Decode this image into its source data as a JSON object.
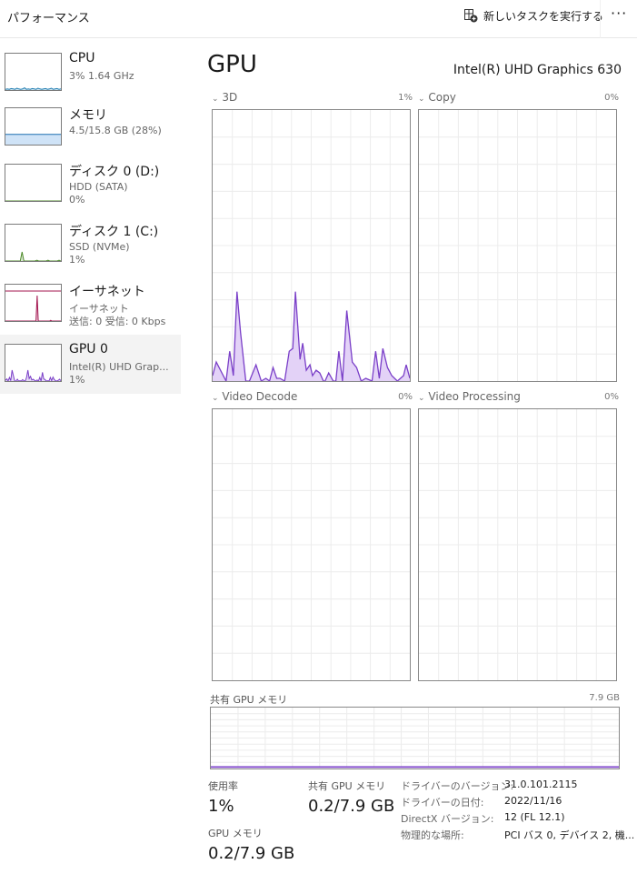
{
  "header": {
    "title": "パフォーマンス",
    "new_task_label": "新しいタスクを実行する",
    "new_task_icon": "new-task-icon",
    "more_icon": "ellipsis-icon",
    "more_label": "···"
  },
  "sidebar": {
    "items": [
      {
        "name": "CPU",
        "sub1": "3%  1.64 GHz",
        "sub2": "",
        "color": "#1c7bb0",
        "values": [
          2,
          3,
          2,
          4,
          3,
          2,
          5,
          3,
          2,
          3,
          6,
          2,
          3,
          2,
          4,
          3,
          2,
          5,
          3,
          2,
          3,
          4,
          2,
          3,
          5,
          2,
          3,
          4,
          2,
          3
        ]
      },
      {
        "name": "メモリ",
        "sub1": "4.5/15.8 GB (28%)",
        "sub2": "",
        "color": "#1c6fb0",
        "fill": 28
      },
      {
        "name": "ディスク 0 (D:)",
        "sub1": "HDD (SATA)",
        "sub2": "0%",
        "color": "#4d8a2a",
        "values": [
          0,
          0,
          0,
          0,
          0,
          0,
          0,
          0,
          0,
          0
        ]
      },
      {
        "name": "ディスク 1 (C:)",
        "sub1": "SSD (NVMe)",
        "sub2": "1%",
        "color": "#4d8a2a",
        "values": [
          0,
          0,
          0,
          0,
          0,
          0,
          0,
          0,
          0,
          25,
          0,
          0,
          0,
          0,
          0,
          0,
          0,
          2,
          0,
          0,
          0,
          0,
          0,
          2,
          0,
          0,
          0,
          0,
          0,
          2,
          0
        ]
      },
      {
        "name": "イーサネット",
        "sub1": "イーサネット",
        "sub2": "送信: 0 受信: 0 Kbps",
        "color": "#a3154f",
        "values": [
          0,
          0,
          0,
          0,
          0,
          0,
          0,
          0,
          0,
          0,
          0,
          0,
          0,
          0,
          0,
          0,
          0,
          0,
          0,
          0,
          0,
          0,
          0,
          0,
          0,
          0,
          0,
          0,
          70,
          0,
          0,
          0,
          0,
          0,
          0,
          0,
          0,
          0,
          0,
          0,
          2,
          0,
          0,
          0,
          0,
          0,
          0,
          0,
          0,
          0
        ]
      },
      {
        "name": "GPU 0",
        "sub1": "Intel(R) UHD Grap...",
        "sub2": "1%",
        "color": "#7a3fc8",
        "values": [
          2,
          6,
          0,
          10,
          1,
          30,
          15,
          0,
          0,
          5,
          0,
          1,
          0,
          4,
          1,
          0,
          10,
          30,
          7,
          13,
          3,
          5,
          2,
          0,
          3,
          0,
          10,
          0,
          24,
          6,
          4,
          0,
          1,
          0,
          10,
          1,
          11,
          4,
          1,
          0,
          2,
          5,
          1
        ]
      }
    ]
  },
  "main": {
    "title": "GPU",
    "adapter": "Intel(R) UHD Graphics 630",
    "engines": [
      {
        "label": "3D",
        "pct": "1%"
      },
      {
        "label": "Copy",
        "pct": "0%"
      },
      {
        "label": "Video Decode",
        "pct": "0%"
      },
      {
        "label": "Video Processing",
        "pct": "0%"
      }
    ],
    "shared_mem": {
      "label": "共有 GPU メモリ",
      "max": "7.9 GB",
      "value_gb": 0.2
    },
    "stats": {
      "usage_label": "使用率",
      "usage_value": "1%",
      "gpu_mem_label": "GPU メモリ",
      "gpu_mem_value": "0.2/7.9 GB",
      "shared_label": "共有 GPU メモリ",
      "shared_value": "0.2/7.9 GB"
    },
    "details": [
      {
        "k": "ドライバーのバージョン:",
        "v": "31.0.101.2115"
      },
      {
        "k": "ドライバーの日付:",
        "v": "2022/11/16"
      },
      {
        "k": "DirectX バージョン:",
        "v": "12 (FL 12.1)"
      },
      {
        "k": "物理的な場所:",
        "v": "PCI バス 0, デバイス 2, 機..."
      }
    ]
  },
  "colors": {
    "gpu_line": "#7a3fc8",
    "gpu_fill": "#e3d2f7",
    "grid": "#ececec",
    "border": "#888888",
    "selected_bg": "#f3f3f3"
  },
  "chart_data": {
    "type": "area",
    "title": "3D",
    "xlabel": "",
    "ylabel": "",
    "xlim": [
      0,
      60
    ],
    "ylim": [
      0,
      100
    ],
    "grid": true,
    "x": [
      0,
      1.1,
      4.1,
      5.2,
      6.3,
      7.4,
      8.5,
      10.1,
      11.2,
      13.2,
      14.8,
      16.2,
      17.3,
      18.4,
      19.5,
      20.5,
      21.9,
      23.3,
      24.4,
      25.2,
      26.6,
      27.4,
      28.5,
      29.6,
      30.4,
      31.5,
      32.6,
      33.7,
      34.2,
      35.3,
      36.7,
      37.5,
      38.4,
      39.5,
      40.8,
      42.5,
      43.8,
      45.2,
      46.6,
      48.5,
      49.6,
      50.7,
      51.8,
      53.2,
      54.5,
      56.2,
      58.1,
      58.9,
      60
    ],
    "values": [
      2,
      7,
      0,
      11,
      2,
      33,
      18,
      0,
      0,
      6,
      0,
      1,
      0,
      5,
      1,
      1,
      0,
      11,
      12,
      33,
      8,
      14,
      4,
      6,
      2,
      4,
      3,
      0,
      0,
      3,
      0,
      0,
      11,
      0,
      26,
      7,
      5,
      0,
      1,
      0,
      11,
      1,
      12,
      5,
      2,
      0,
      2,
      6,
      1
    ]
  }
}
